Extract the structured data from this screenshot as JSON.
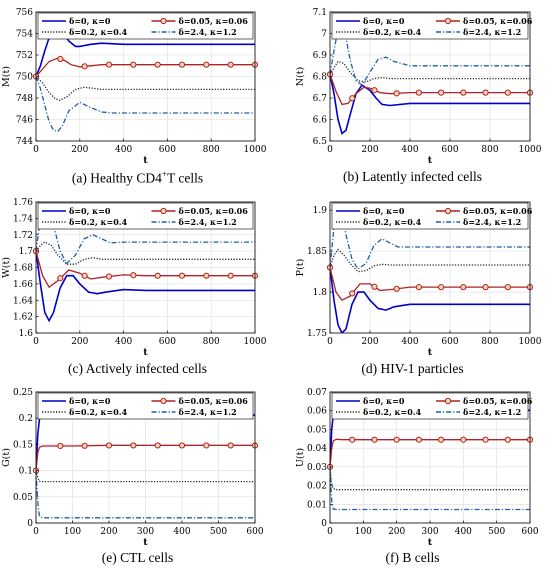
{
  "legend_entries": [
    {
      "text": "δ=0, κ=0",
      "color": "#0000cc",
      "dash": "solid",
      "marker": "none"
    },
    {
      "text": "δ=0.05, κ=0.06",
      "color": "#b22222",
      "dash": "solid",
      "marker": "circle"
    },
    {
      "text": "δ=0.2, κ=0.4",
      "color": "#222222",
      "dash": "dotted",
      "marker": "none"
    },
    {
      "text": "δ=2.4, κ=1.2",
      "color": "#1f5fa8",
      "dash": "dashdot",
      "marker": "none"
    }
  ],
  "chart_data": [
    {
      "type": "line",
      "panel_label": "(a)",
      "caption_pre": "Healthy CD4",
      "caption_sup": "+",
      "caption_post": "T cells",
      "xlabel": "t",
      "ylabel": "M(t)",
      "xlim": [
        0,
        1000
      ],
      "ylim": [
        744,
        756
      ],
      "xticks": [
        0,
        200,
        400,
        600,
        800,
        1000
      ],
      "yticks": [
        744,
        746,
        748,
        750,
        752,
        754,
        756
      ],
      "ytick_labels": [
        "744",
        "746",
        "748",
        "750",
        "752",
        "754",
        "756"
      ],
      "series": [
        {
          "name": "δ=0, κ=0",
          "x": [
            0,
            20,
            40,
            60,
            80,
            100,
            120,
            150,
            180,
            200,
            250,
            300,
            400,
            500,
            700,
            1000
          ],
          "y": [
            750,
            751.0,
            752.4,
            753.6,
            754.2,
            754.4,
            754.1,
            753.3,
            752.8,
            752.8,
            753.0,
            753.1,
            753.0,
            753.0,
            753.0,
            753.0
          ]
        },
        {
          "name": "δ=0.05, κ=0.06",
          "x": [
            0,
            30,
            60,
            100,
            130,
            160,
            200,
            250,
            300,
            400,
            500,
            700,
            1000
          ],
          "y": [
            750,
            750.7,
            751.4,
            751.7,
            751.5,
            751.1,
            750.9,
            751.0,
            751.1,
            751.1,
            751.1,
            751.1,
            751.1
          ]
        },
        {
          "name": "δ=0.2, κ=0.4",
          "x": [
            0,
            30,
            60,
            90,
            110,
            140,
            180,
            220,
            260,
            300,
            400,
            500,
            700,
            1000
          ],
          "y": [
            750,
            749.4,
            748.5,
            747.9,
            747.8,
            748.1,
            748.8,
            749.0,
            748.9,
            748.8,
            748.8,
            748.8,
            748.8,
            748.8
          ]
        },
        {
          "name": "δ=2.4, κ=1.2",
          "x": [
            0,
            20,
            40,
            60,
            80,
            100,
            120,
            150,
            200,
            250,
            300,
            350,
            400,
            500,
            700,
            1000
          ],
          "y": [
            750,
            748.9,
            747.3,
            745.8,
            745.0,
            744.9,
            745.4,
            746.8,
            747.6,
            747.1,
            746.7,
            746.6,
            746.6,
            746.6,
            746.6,
            746.6
          ]
        }
      ]
    },
    {
      "type": "line",
      "panel_label": "(b)",
      "caption_pre": "Latently infected cells",
      "caption_sup": "",
      "caption_post": "",
      "xlabel": "t",
      "ylabel": "N(t)",
      "xlim": [
        0,
        1000
      ],
      "ylim": [
        6.5,
        7.1
      ],
      "xticks": [
        0,
        200,
        400,
        600,
        800,
        1000
      ],
      "yticks": [
        6.5,
        6.6,
        6.7,
        6.8,
        6.9,
        7.0,
        7.1
      ],
      "ytick_labels": [
        "6.5",
        "6.6",
        "6.7",
        "6.8",
        "6.9",
        "7",
        "7.1"
      ],
      "series": [
        {
          "name": "δ=0, κ=0",
          "x": [
            0,
            20,
            40,
            60,
            80,
            100,
            130,
            160,
            200,
            230,
            260,
            300,
            400,
            500,
            700,
            1000
          ],
          "y": [
            6.81,
            6.72,
            6.6,
            6.535,
            6.55,
            6.62,
            6.72,
            6.76,
            6.735,
            6.7,
            6.67,
            6.665,
            6.675,
            6.675,
            6.675,
            6.675
          ]
        },
        {
          "name": "δ=0.05, κ=0.06",
          "x": [
            0,
            30,
            60,
            90,
            130,
            170,
            200,
            250,
            300,
            400,
            500,
            700,
            1000
          ],
          "y": [
            6.81,
            6.73,
            6.67,
            6.675,
            6.72,
            6.75,
            6.745,
            6.725,
            6.72,
            6.725,
            6.725,
            6.725,
            6.725
          ]
        },
        {
          "name": "δ=0.2, κ=0.4",
          "x": [
            0,
            20,
            40,
            70,
            100,
            140,
            180,
            220,
            260,
            300,
            400,
            500,
            700,
            1000
          ],
          "y": [
            6.81,
            6.84,
            6.87,
            6.86,
            6.82,
            6.78,
            6.775,
            6.79,
            6.795,
            6.79,
            6.79,
            6.79,
            6.79,
            6.79
          ]
        },
        {
          "name": "δ=2.4, κ=1.2",
          "x": [
            0,
            20,
            40,
            60,
            80,
            100,
            130,
            160,
            200,
            240,
            280,
            320,
            400,
            500,
            700,
            1000
          ],
          "y": [
            6.81,
            6.92,
            7.02,
            7.04,
            6.98,
            6.88,
            6.78,
            6.76,
            6.82,
            6.88,
            6.89,
            6.87,
            6.85,
            6.85,
            6.85,
            6.85
          ]
        }
      ]
    },
    {
      "type": "line",
      "panel_label": "(c)",
      "caption_pre": "Actively infected cells",
      "caption_sup": "",
      "caption_post": "",
      "xlabel": "t",
      "ylabel": "W(t)",
      "xlim": [
        0,
        1000
      ],
      "ylim": [
        1.6,
        1.76
      ],
      "xticks": [
        0,
        200,
        400,
        600,
        800,
        1000
      ],
      "yticks": [
        1.6,
        1.62,
        1.64,
        1.66,
        1.68,
        1.7,
        1.72,
        1.74,
        1.76
      ],
      "ytick_labels": [
        "1.6",
        "1.62",
        "1.64",
        "1.66",
        "1.68",
        "1.7",
        "1.72",
        "1.74",
        "1.76"
      ],
      "series": [
        {
          "name": "δ=0, κ=0",
          "x": [
            0,
            20,
            40,
            60,
            80,
            110,
            140,
            170,
            200,
            240,
            280,
            320,
            400,
            500,
            700,
            1000
          ],
          "y": [
            1.7,
            1.66,
            1.625,
            1.615,
            1.625,
            1.655,
            1.67,
            1.67,
            1.66,
            1.65,
            1.648,
            1.65,
            1.653,
            1.652,
            1.652,
            1.652
          ]
        },
        {
          "name": "δ=0.05, κ=0.06",
          "x": [
            0,
            30,
            60,
            100,
            150,
            200,
            250,
            300,
            400,
            500,
            700,
            1000
          ],
          "y": [
            1.7,
            1.67,
            1.656,
            1.664,
            1.677,
            1.673,
            1.666,
            1.668,
            1.671,
            1.67,
            1.67,
            1.67
          ]
        },
        {
          "name": "δ=0.2, κ=0.4",
          "x": [
            0,
            20,
            40,
            70,
            100,
            140,
            180,
            220,
            260,
            300,
            400,
            500,
            700,
            1000
          ],
          "y": [
            1.7,
            1.707,
            1.711,
            1.707,
            1.695,
            1.684,
            1.684,
            1.69,
            1.692,
            1.69,
            1.69,
            1.69,
            1.69,
            1.69
          ]
        },
        {
          "name": "δ=2.4, κ=1.2",
          "x": [
            0,
            20,
            40,
            60,
            80,
            110,
            140,
            180,
            220,
            260,
            300,
            340,
            400,
            500,
            700,
            1000
          ],
          "y": [
            1.7,
            1.74,
            1.758,
            1.752,
            1.732,
            1.7,
            1.685,
            1.695,
            1.715,
            1.72,
            1.715,
            1.71,
            1.711,
            1.711,
            1.711,
            1.711
          ]
        }
      ]
    },
    {
      "type": "line",
      "panel_label": "(d)",
      "caption_pre": "HIV-1 particles",
      "caption_sup": "",
      "caption_post": "",
      "xlabel": "t",
      "ylabel": "P(t)",
      "xlim": [
        0,
        1000
      ],
      "ylim": [
        1.75,
        1.91
      ],
      "xticks": [
        0,
        200,
        400,
        600,
        800,
        1000
      ],
      "yticks": [
        1.75,
        1.8,
        1.85,
        1.9
      ],
      "ytick_labels": [
        "1.75",
        "1.8",
        "1.85",
        "1.9"
      ],
      "series": [
        {
          "name": "δ=0, κ=0",
          "x": [
            0,
            20,
            40,
            60,
            80,
            110,
            140,
            170,
            200,
            240,
            280,
            320,
            400,
            500,
            700,
            1000
          ],
          "y": [
            1.83,
            1.79,
            1.76,
            1.75,
            1.755,
            1.785,
            1.8,
            1.8,
            1.79,
            1.78,
            1.778,
            1.782,
            1.785,
            1.785,
            1.785,
            1.785
          ]
        },
        {
          "name": "δ=0.05, κ=0.06",
          "x": [
            0,
            30,
            60,
            100,
            150,
            200,
            250,
            300,
            400,
            500,
            700,
            1000
          ],
          "y": [
            1.83,
            1.8,
            1.79,
            1.795,
            1.81,
            1.81,
            1.802,
            1.803,
            1.806,
            1.806,
            1.806,
            1.806
          ]
        },
        {
          "name": "δ=0.2, κ=0.4",
          "x": [
            0,
            20,
            40,
            70,
            100,
            140,
            180,
            220,
            260,
            300,
            400,
            500,
            700,
            1000
          ],
          "y": [
            1.83,
            1.845,
            1.852,
            1.845,
            1.835,
            1.825,
            1.826,
            1.832,
            1.834,
            1.833,
            1.833,
            1.833,
            1.833,
            1.833
          ]
        },
        {
          "name": "δ=2.4, κ=1.2",
          "x": [
            0,
            20,
            40,
            60,
            80,
            110,
            140,
            180,
            220,
            260,
            300,
            340,
            400,
            500,
            700,
            1000
          ],
          "y": [
            1.83,
            1.88,
            1.905,
            1.898,
            1.87,
            1.84,
            1.828,
            1.835,
            1.857,
            1.865,
            1.86,
            1.855,
            1.855,
            1.855,
            1.855,
            1.855
          ]
        }
      ]
    },
    {
      "type": "line",
      "panel_label": "(e)",
      "caption_pre": "CTL cells",
      "caption_sup": "",
      "caption_post": "",
      "xlabel": "t",
      "ylabel": "G(t)",
      "xlim": [
        0,
        600
      ],
      "ylim": [
        0,
        0.25
      ],
      "xticks": [
        0,
        100,
        200,
        300,
        400,
        500,
        600
      ],
      "yticks": [
        0,
        0.05,
        0.1,
        0.15,
        0.2,
        0.25
      ],
      "ytick_labels": [
        "0",
        "0.05",
        "0.1",
        "0.15",
        "0.2",
        "0.25"
      ],
      "series": [
        {
          "name": "δ=0, κ=0",
          "x": [
            0,
            5,
            10,
            15,
            20,
            30,
            50,
            100,
            200,
            300,
            400,
            500,
            600
          ],
          "y": [
            0.1,
            0.17,
            0.2,
            0.207,
            0.206,
            0.203,
            0.203,
            0.205,
            0.206,
            0.206,
            0.206,
            0.206,
            0.206
          ]
        },
        {
          "name": "δ=0.05, κ=0.06",
          "x": [
            0,
            5,
            10,
            20,
            40,
            100,
            200,
            300,
            400,
            500,
            600
          ],
          "y": [
            0.1,
            0.135,
            0.145,
            0.147,
            0.147,
            0.147,
            0.148,
            0.148,
            0.148,
            0.148,
            0.148
          ]
        },
        {
          "name": "δ=0.2, κ=0.4",
          "x": [
            0,
            4,
            8,
            15,
            30,
            100,
            200,
            300,
            400,
            500,
            600
          ],
          "y": [
            0.1,
            0.09,
            0.08,
            0.079,
            0.079,
            0.079,
            0.079,
            0.079,
            0.079,
            0.079,
            0.079
          ]
        },
        {
          "name": "δ=2.4, κ=1.2",
          "x": [
            0,
            3,
            6,
            10,
            20,
            100,
            200,
            300,
            400,
            500,
            600
          ],
          "y": [
            0.1,
            0.06,
            0.03,
            0.012,
            0.01,
            0.01,
            0.01,
            0.01,
            0.01,
            0.01,
            0.01
          ]
        }
      ]
    },
    {
      "type": "line",
      "panel_label": "(f)",
      "caption_pre": "B cells",
      "caption_sup": "",
      "caption_post": "",
      "xlabel": "t",
      "ylabel": "U(t)",
      "xlim": [
        0,
        600
      ],
      "ylim": [
        0,
        0.07
      ],
      "xticks": [
        0,
        100,
        200,
        300,
        400,
        500,
        600
      ],
      "yticks": [
        0,
        0.01,
        0.02,
        0.03,
        0.04,
        0.05,
        0.06,
        0.07
      ],
      "ytick_labels": [
        "0",
        "0.01",
        "0.02",
        "0.03",
        "0.04",
        "0.05",
        "0.06",
        "0.07"
      ],
      "series": [
        {
          "name": "δ=0, κ=0",
          "x": [
            0,
            5,
            10,
            15,
            20,
            30,
            50,
            100,
            200,
            300,
            400,
            500,
            600
          ],
          "y": [
            0.03,
            0.05,
            0.058,
            0.0605,
            0.0603,
            0.0598,
            0.0597,
            0.06,
            0.0602,
            0.0602,
            0.0602,
            0.0602,
            0.0602
          ]
        },
        {
          "name": "δ=0.05, κ=0.06",
          "x": [
            0,
            5,
            10,
            20,
            40,
            100,
            200,
            300,
            400,
            500,
            600
          ],
          "y": [
            0.03,
            0.04,
            0.044,
            0.0447,
            0.0445,
            0.0445,
            0.0445,
            0.0445,
            0.0445,
            0.0445,
            0.0445
          ]
        },
        {
          "name": "δ=0.2, κ=0.4",
          "x": [
            0,
            4,
            8,
            15,
            30,
            100,
            200,
            300,
            400,
            500,
            600
          ],
          "y": [
            0.03,
            0.022,
            0.019,
            0.0178,
            0.0178,
            0.0178,
            0.0178,
            0.0178,
            0.0178,
            0.0178,
            0.0178
          ]
        },
        {
          "name": "δ=2.4, κ=1.2",
          "x": [
            0,
            3,
            6,
            10,
            20,
            100,
            200,
            300,
            400,
            500,
            600
          ],
          "y": [
            0.03,
            0.018,
            0.01,
            0.0075,
            0.0072,
            0.0072,
            0.0072,
            0.0072,
            0.0072,
            0.0072,
            0.0072
          ]
        }
      ]
    }
  ]
}
